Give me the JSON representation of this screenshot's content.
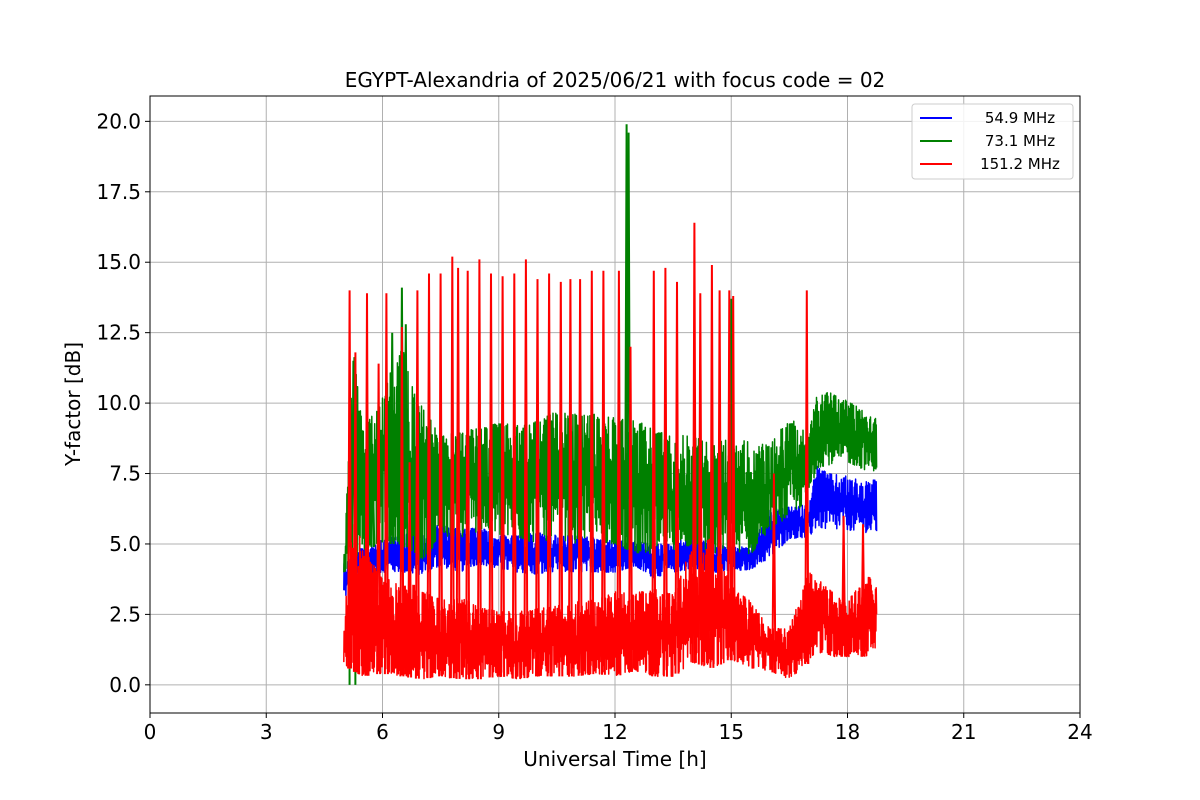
{
  "chart_data": {
    "type": "line",
    "title": "EGYPT-Alexandria of 2025/06/21 with focus code = 02",
    "xlabel": "Universal Time [h]",
    "ylabel": "Y-factor [dB]",
    "xlim": [
      0,
      24
    ],
    "ylim": [
      -1,
      20.9
    ],
    "xticks": [
      0,
      3,
      6,
      9,
      12,
      15,
      18,
      21,
      24
    ],
    "xtick_labels": [
      "0",
      "3",
      "6",
      "9",
      "12",
      "15",
      "18",
      "21",
      "24"
    ],
    "yticks": [
      0,
      2.5,
      5,
      7.5,
      10,
      12.5,
      15,
      17.5,
      20
    ],
    "ytick_labels": [
      "0.0",
      "2.5",
      "5.0",
      "7.5",
      "10.0",
      "12.5",
      "15.0",
      "17.5",
      "20.0"
    ],
    "grid": true,
    "legend_position": "top-right",
    "series": [
      {
        "name": "54.9 MHz",
        "color": "#0000ff",
        "x": [
          5.0,
          5.25,
          5.5,
          6.0,
          6.5,
          7.0,
          7.5,
          8.0,
          8.5,
          9.0,
          9.5,
          10.0,
          10.5,
          11.0,
          11.5,
          12.0,
          12.5,
          13.0,
          13.5,
          14.0,
          14.5,
          15.0,
          15.5,
          16.0,
          16.5,
          17.0,
          17.2,
          17.5,
          18.0,
          18.5,
          18.75
        ],
        "low": [
          3.0,
          3.6,
          3.8,
          4.0,
          4.0,
          3.9,
          4.2,
          4.0,
          4.3,
          4.1,
          4.0,
          3.9,
          4.0,
          4.0,
          4.0,
          4.0,
          4.2,
          3.8,
          4.0,
          4.1,
          4.0,
          4.0,
          4.1,
          4.5,
          5.2,
          5.2,
          5.6,
          5.5,
          5.5,
          5.4,
          5.4
        ],
        "high": [
          4.4,
          4.6,
          4.9,
          5.2,
          5.4,
          5.5,
          5.7,
          5.5,
          5.6,
          5.3,
          5.3,
          5.4,
          5.3,
          5.3,
          5.2,
          5.1,
          5.1,
          5.0,
          5.0,
          5.4,
          5.0,
          4.9,
          4.9,
          6.2,
          6.3,
          6.4,
          7.8,
          7.5,
          7.4,
          7.2,
          7.3
        ]
      },
      {
        "name": "73.1 MHz",
        "color": "#008000",
        "x": [
          5.0,
          5.25,
          5.5,
          6.0,
          6.5,
          7.0,
          7.5,
          8.0,
          8.5,
          9.0,
          9.5,
          10.0,
          10.5,
          11.0,
          11.5,
          12.0,
          12.5,
          13.0,
          13.5,
          14.0,
          14.5,
          15.0,
          15.5,
          16.0,
          16.5,
          17.0,
          17.2,
          17.5,
          18.0,
          18.5,
          18.75
        ],
        "low": [
          3.8,
          4.4,
          4.8,
          5.0,
          5.0,
          4.4,
          5.2,
          5.0,
          5.5,
          5.3,
          5.2,
          5.0,
          5.2,
          5.0,
          5.1,
          5.0,
          4.7,
          4.6,
          4.8,
          4.9,
          4.6,
          4.8,
          4.6,
          5.5,
          6.0,
          6.5,
          7.7,
          7.8,
          7.9,
          7.6,
          7.6
        ],
        "high": [
          4.4,
          12.0,
          9.0,
          10.5,
          12.0,
          10.0,
          8.8,
          9.0,
          9.1,
          9.3,
          9.2,
          9.4,
          9.7,
          9.6,
          9.6,
          9.5,
          9.4,
          9.1,
          8.8,
          8.9,
          8.5,
          8.8,
          8.6,
          8.5,
          9.5,
          9.0,
          10.2,
          10.4,
          10.1,
          9.8,
          9.5
        ],
        "spikes": [
          [
            5.25,
            11.5
          ],
          [
            5.75,
            7.6
          ],
          [
            6.25,
            12.5
          ],
          [
            6.5,
            14.1
          ],
          [
            6.6,
            12.8
          ],
          [
            7.2,
            10.8
          ],
          [
            12.3,
            19.9
          ],
          [
            12.35,
            19.6
          ],
          [
            15.0,
            13.7
          ]
        ],
        "dips": [
          [
            5.15,
            0.0
          ],
          [
            5.3,
            0.0
          ]
        ]
      },
      {
        "name": "151.2 MHz",
        "color": "#ff0000",
        "x": [
          5.0,
          5.25,
          5.5,
          6.0,
          6.5,
          7.0,
          7.5,
          8.0,
          8.5,
          9.0,
          9.5,
          10.0,
          10.5,
          11.0,
          11.5,
          12.0,
          12.5,
          13.0,
          13.5,
          14.0,
          14.5,
          15.0,
          15.5,
          16.0,
          16.5,
          17.0,
          17.2,
          17.5,
          18.0,
          18.5,
          18.75
        ],
        "low": [
          0.7,
          0.5,
          0.3,
          0.4,
          0.3,
          0.2,
          0.3,
          0.2,
          0.2,
          0.3,
          0.2,
          0.3,
          0.3,
          0.3,
          0.4,
          0.3,
          0.5,
          0.3,
          0.3,
          0.8,
          0.6,
          0.9,
          0.6,
          0.5,
          0.2,
          0.8,
          1.2,
          1.0,
          1.0,
          1.0,
          1.2
        ],
        "high": [
          2.2,
          6.0,
          5.0,
          3.8,
          3.6,
          3.5,
          3.0,
          3.1,
          2.8,
          2.6,
          2.6,
          2.7,
          2.8,
          3.0,
          3.0,
          3.3,
          3.3,
          3.4,
          3.2,
          5.0,
          5.2,
          3.5,
          3.0,
          2.0,
          2.0,
          4.0,
          3.8,
          3.4,
          3.0,
          3.8,
          3.9
        ],
        "spikes": [
          [
            5.15,
            14.0
          ],
          [
            5.3,
            11.8
          ],
          [
            5.6,
            13.9
          ],
          [
            5.9,
            11.4
          ],
          [
            6.1,
            13.9
          ],
          [
            6.5,
            12.7
          ],
          [
            6.7,
            7.9
          ],
          [
            6.9,
            14.0
          ],
          [
            7.2,
            14.6
          ],
          [
            7.5,
            14.6
          ],
          [
            7.8,
            15.2
          ],
          [
            7.95,
            14.8
          ],
          [
            8.2,
            14.7
          ],
          [
            8.5,
            15.1
          ],
          [
            8.8,
            14.6
          ],
          [
            9.1,
            14.5
          ],
          [
            9.4,
            14.6
          ],
          [
            9.7,
            15.1
          ],
          [
            10.0,
            14.4
          ],
          [
            10.3,
            14.6
          ],
          [
            10.6,
            14.3
          ],
          [
            10.85,
            14.4
          ],
          [
            11.1,
            14.4
          ],
          [
            11.4,
            14.7
          ],
          [
            11.7,
            14.7
          ],
          [
            12.1,
            14.7
          ],
          [
            12.4,
            12.0
          ],
          [
            13.0,
            14.7
          ],
          [
            13.3,
            14.8
          ],
          [
            13.6,
            14.3
          ],
          [
            14.05,
            16.4
          ],
          [
            14.2,
            13.9
          ],
          [
            14.5,
            14.9
          ],
          [
            14.7,
            14.0
          ],
          [
            14.95,
            14.0
          ],
          [
            15.05,
            13.8
          ],
          [
            16.1,
            7.5
          ],
          [
            16.95,
            14.0
          ],
          [
            17.9,
            6.0
          ],
          [
            18.4,
            5.7
          ]
        ]
      }
    ]
  }
}
